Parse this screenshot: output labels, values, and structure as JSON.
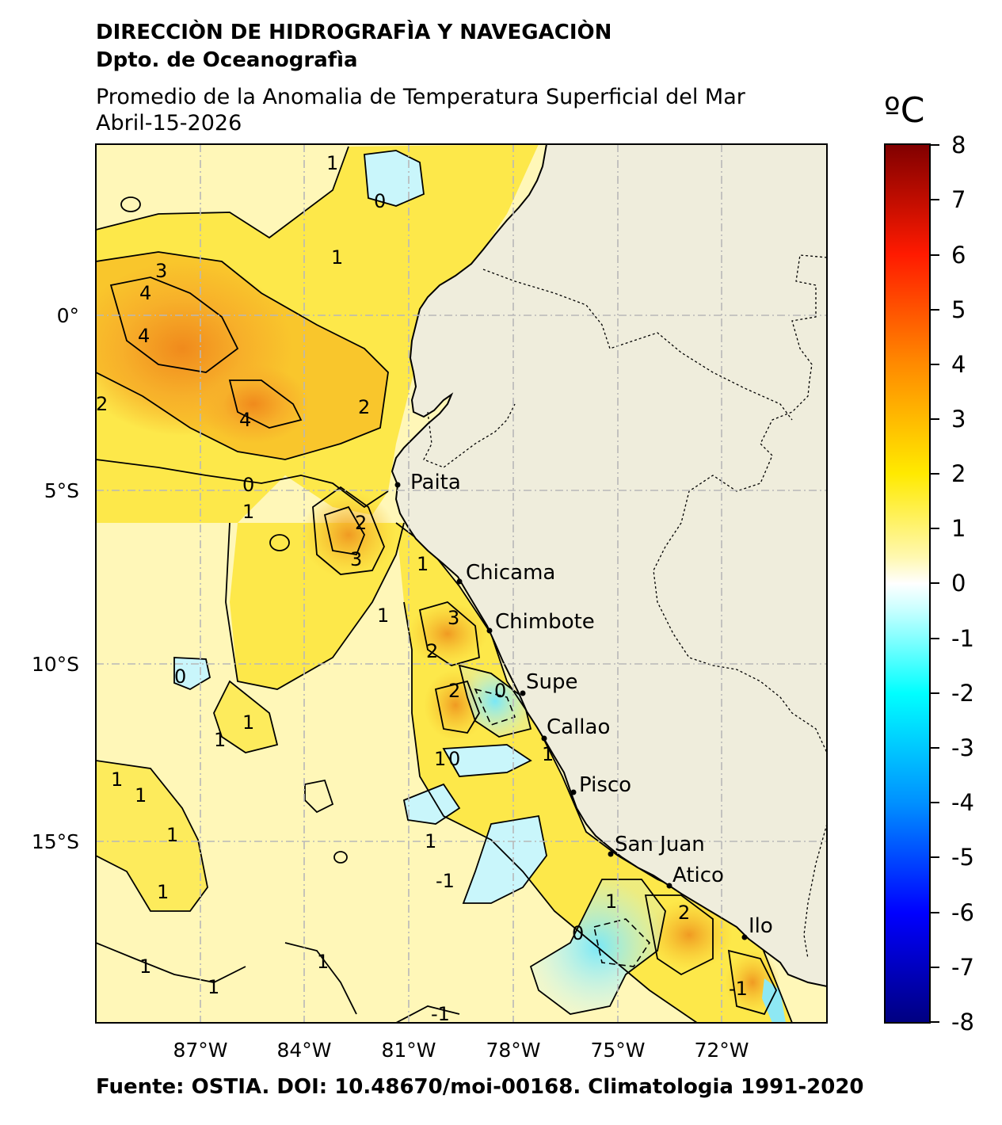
{
  "header": {
    "institution": "DIRECCIÒN DE HIDROGRAFÌA Y NAVEGACIÒN",
    "department": "Dpto. de Oceanografìa"
  },
  "map": {
    "title": "Promedio de la Anomalia de Temperatura Superficial del Mar",
    "date": "Abril-15-2026",
    "lon_ticks": [
      "87°W",
      "84°W",
      "81°W",
      "78°W",
      "75°W",
      "72°W"
    ],
    "lat_ticks": [
      "0°",
      "5°S",
      "10°S",
      "15°S"
    ],
    "ports": [
      "Paita",
      "Chicama",
      "Chimbote",
      "Supe",
      "Callao",
      "Pisco",
      "San Juan",
      "Atico",
      "Ilo"
    ],
    "contour_labels": [
      "-1",
      "0",
      "1",
      "2",
      "3",
      "4"
    ],
    "colors": {
      "land": "#efeddc",
      "ocean_base": "#fff7b8"
    }
  },
  "colorbar": {
    "unit": "ºC",
    "ticks": [
      "8",
      "7",
      "6",
      "5",
      "4",
      "3",
      "2",
      "1",
      "0",
      "-1",
      "-2",
      "-3",
      "-4",
      "-5",
      "-6",
      "-7",
      "-8"
    ],
    "range": [
      -8,
      8
    ]
  },
  "footer": {
    "source": "Fuente: OSTIA. DOI: 10.48670/moi-00168. Climatologia 1991-2020"
  }
}
